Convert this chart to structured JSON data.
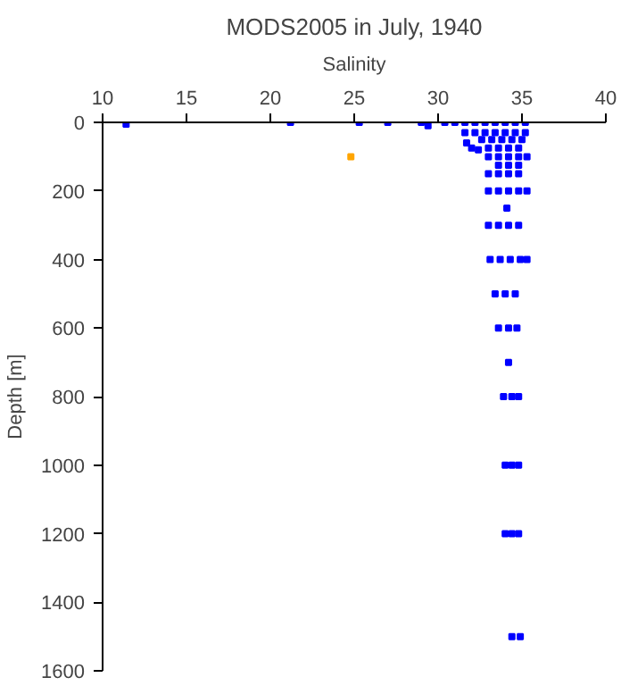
{
  "chart_data": {
    "type": "scatter",
    "title": "MODS2005 in July, 1940",
    "xlabel": "Salinity",
    "ylabel": "Depth [m]",
    "xlim": [
      10,
      40
    ],
    "xticks": [
      10,
      15,
      20,
      25,
      30,
      35,
      40
    ],
    "ylim": [
      1600,
      0
    ],
    "yticks": [
      0,
      200,
      400,
      600,
      800,
      1000,
      1200,
      1400,
      1600
    ],
    "grid": false,
    "marker": "square",
    "series": [
      {
        "color": "#0000ff",
        "x": [
          11.4,
          21.2,
          25.3,
          27.0,
          29.0,
          29.4,
          31.7,
          32.0,
          32.4,
          30.4,
          31.0,
          31.6,
          32.2,
          32.8,
          33.4,
          34.0,
          34.6,
          35.2,
          31.6,
          32.2,
          32.8,
          33.4,
          34.0,
          34.6,
          35.2,
          32.6,
          33.2,
          33.8,
          34.4,
          35.0,
          33.0,
          33.6,
          34.2,
          34.8,
          33.0,
          33.6,
          34.2,
          34.8,
          35.3,
          33.6,
          34.2,
          34.8,
          33.0,
          33.6,
          34.2,
          34.8,
          33.0,
          33.6,
          34.2,
          34.8,
          35.3,
          34.1,
          33.0,
          33.6,
          34.2,
          34.8,
          33.1,
          33.7,
          34.3,
          34.9,
          35.3,
          33.4,
          34.0,
          34.6,
          33.6,
          34.2,
          34.7,
          34.2,
          33.9,
          34.4,
          34.8,
          34.0,
          34.4,
          34.8,
          34.0,
          34.4,
          34.8,
          34.4,
          34.9
        ],
        "values": [
          5,
          0,
          0,
          0,
          0,
          10,
          60,
          75,
          80,
          0,
          0,
          0,
          0,
          0,
          0,
          0,
          0,
          0,
          30,
          30,
          30,
          30,
          30,
          30,
          30,
          50,
          50,
          50,
          50,
          50,
          75,
          75,
          75,
          75,
          100,
          100,
          100,
          100,
          100,
          125,
          125,
          125,
          150,
          150,
          150,
          150,
          200,
          200,
          200,
          200,
          200,
          250,
          300,
          300,
          300,
          300,
          400,
          400,
          400,
          400,
          400,
          500,
          500,
          500,
          600,
          600,
          600,
          700,
          800,
          800,
          800,
          1000,
          1000,
          1000,
          1200,
          1200,
          1200,
          1500,
          1500
        ]
      },
      {
        "color": "#ffa500",
        "x": [
          24.8
        ],
        "values": [
          100
        ]
      }
    ]
  }
}
